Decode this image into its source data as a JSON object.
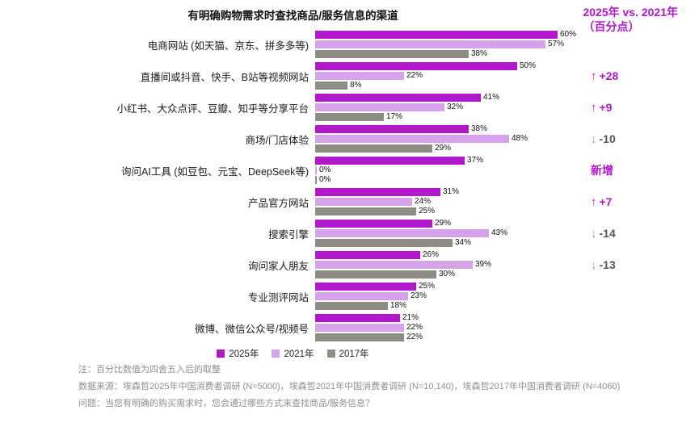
{
  "comparison_header": {
    "line1": "2025年 vs. 2021年",
    "line2": "（百分点）"
  },
  "colors": {
    "accent": "#b018c9",
    "down": "#565656",
    "down_arrow": "#9a9a9a",
    "note_gray": "#8f8f8f"
  },
  "chart_data": {
    "type": "bar",
    "orientation": "horizontal",
    "title": "有明确购物需求时查找商品/服务信息的渠道",
    "xlim": [
      0,
      62
    ],
    "value_suffix": "%",
    "legend_position": "bottom",
    "categories": [
      "电商网站 (如天猫、京东、拼多多等)",
      "直播间或抖音、快手、B站等视频网站",
      "小红书、大众点评、豆瓣、知乎等分享平台",
      "商场/门店体验",
      "询问AI工具 (如豆包、元宝、DeepSeek等)",
      "产品官方网站",
      "搜索引擎",
      "询问家人朋友",
      "专业测评网站",
      "微博、微信公众号/视频号"
    ],
    "series": [
      {
        "name": "2025年",
        "color": "#b018c9",
        "values": [
          60,
          50,
          41,
          38,
          37,
          31,
          29,
          26,
          25,
          21
        ]
      },
      {
        "name": "2021年",
        "color": "#d6a3ea",
        "values": [
          57,
          22,
          32,
          48,
          0,
          24,
          43,
          39,
          23,
          22
        ]
      },
      {
        "name": "2017年",
        "color": "#8d8d86",
        "values": [
          38,
          8,
          17,
          29,
          0,
          25,
          34,
          30,
          18,
          22
        ]
      }
    ],
    "changes": [
      null,
      {
        "direction": "up",
        "arrow": "↑",
        "label": "+28"
      },
      {
        "direction": "up",
        "arrow": "↑",
        "label": "+9"
      },
      {
        "direction": "down",
        "arrow": "↓",
        "label": "-10"
      },
      {
        "direction": "new",
        "arrow": "",
        "label": "新增"
      },
      {
        "direction": "up",
        "arrow": "↑",
        "label": "+7"
      },
      {
        "direction": "down",
        "arrow": "↓",
        "label": "-14"
      },
      {
        "direction": "down",
        "arrow": "↓",
        "label": "-13"
      },
      null,
      null
    ]
  },
  "notes": {
    "note": "注：百分比数值为四舍五入后的取整",
    "source": "数据来源：埃森哲2025年中国消费者调研 (N=5000)，埃森哲2021年中国消费者调研 (N=10,140)，埃森哲2017年中国消费者调研 (N=4060)",
    "question": "问题：当您有明确的购买需求时，您会通过哪些方式来查找商品/服务信息？"
  }
}
